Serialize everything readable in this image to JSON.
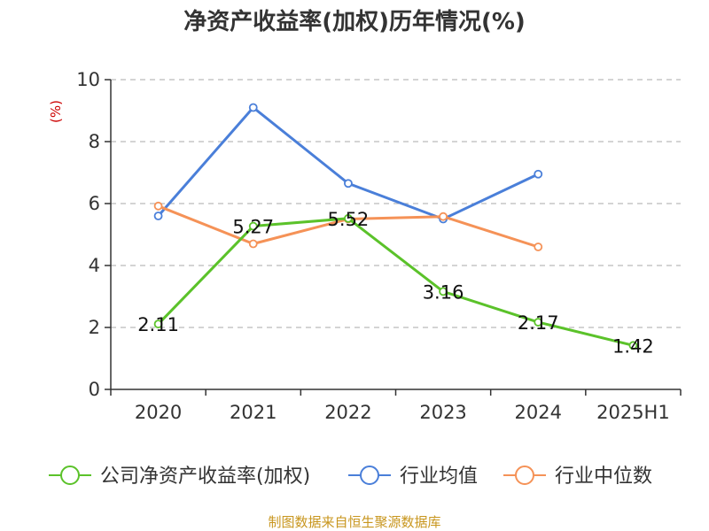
{
  "title": "净资产收益率(加权)历年情况(%)",
  "source": "制图数据来自恒生聚源数据库",
  "chart_data": {
    "type": "line",
    "title": "净资产收益率(加权)历年情况(%)",
    "ylabel": "(%)",
    "xlabel": "",
    "categories": [
      "2020",
      "2021",
      "2022",
      "2023",
      "2024",
      "2025H1"
    ],
    "ylim": [
      0,
      10
    ],
    "yticks": [
      0,
      2,
      4,
      6,
      8,
      10
    ],
    "grid": true,
    "legend_position": "bottom",
    "series": [
      {
        "name": "公司净资产收益率(加权)",
        "color": "#5bc22a",
        "values": [
          2.11,
          5.27,
          5.52,
          3.16,
          2.17,
          1.42
        ],
        "labels": [
          "2.11",
          "5.27",
          "5.52",
          "3.16",
          "2.17",
          "1.42"
        ]
      },
      {
        "name": "行业均值",
        "color": "#4a7fd9",
        "values": [
          5.6,
          9.1,
          6.65,
          5.5,
          6.95,
          null
        ]
      },
      {
        "name": "行业中位数",
        "color": "#f59257",
        "values": [
          5.92,
          4.7,
          5.5,
          5.58,
          4.6,
          null
        ]
      }
    ]
  }
}
